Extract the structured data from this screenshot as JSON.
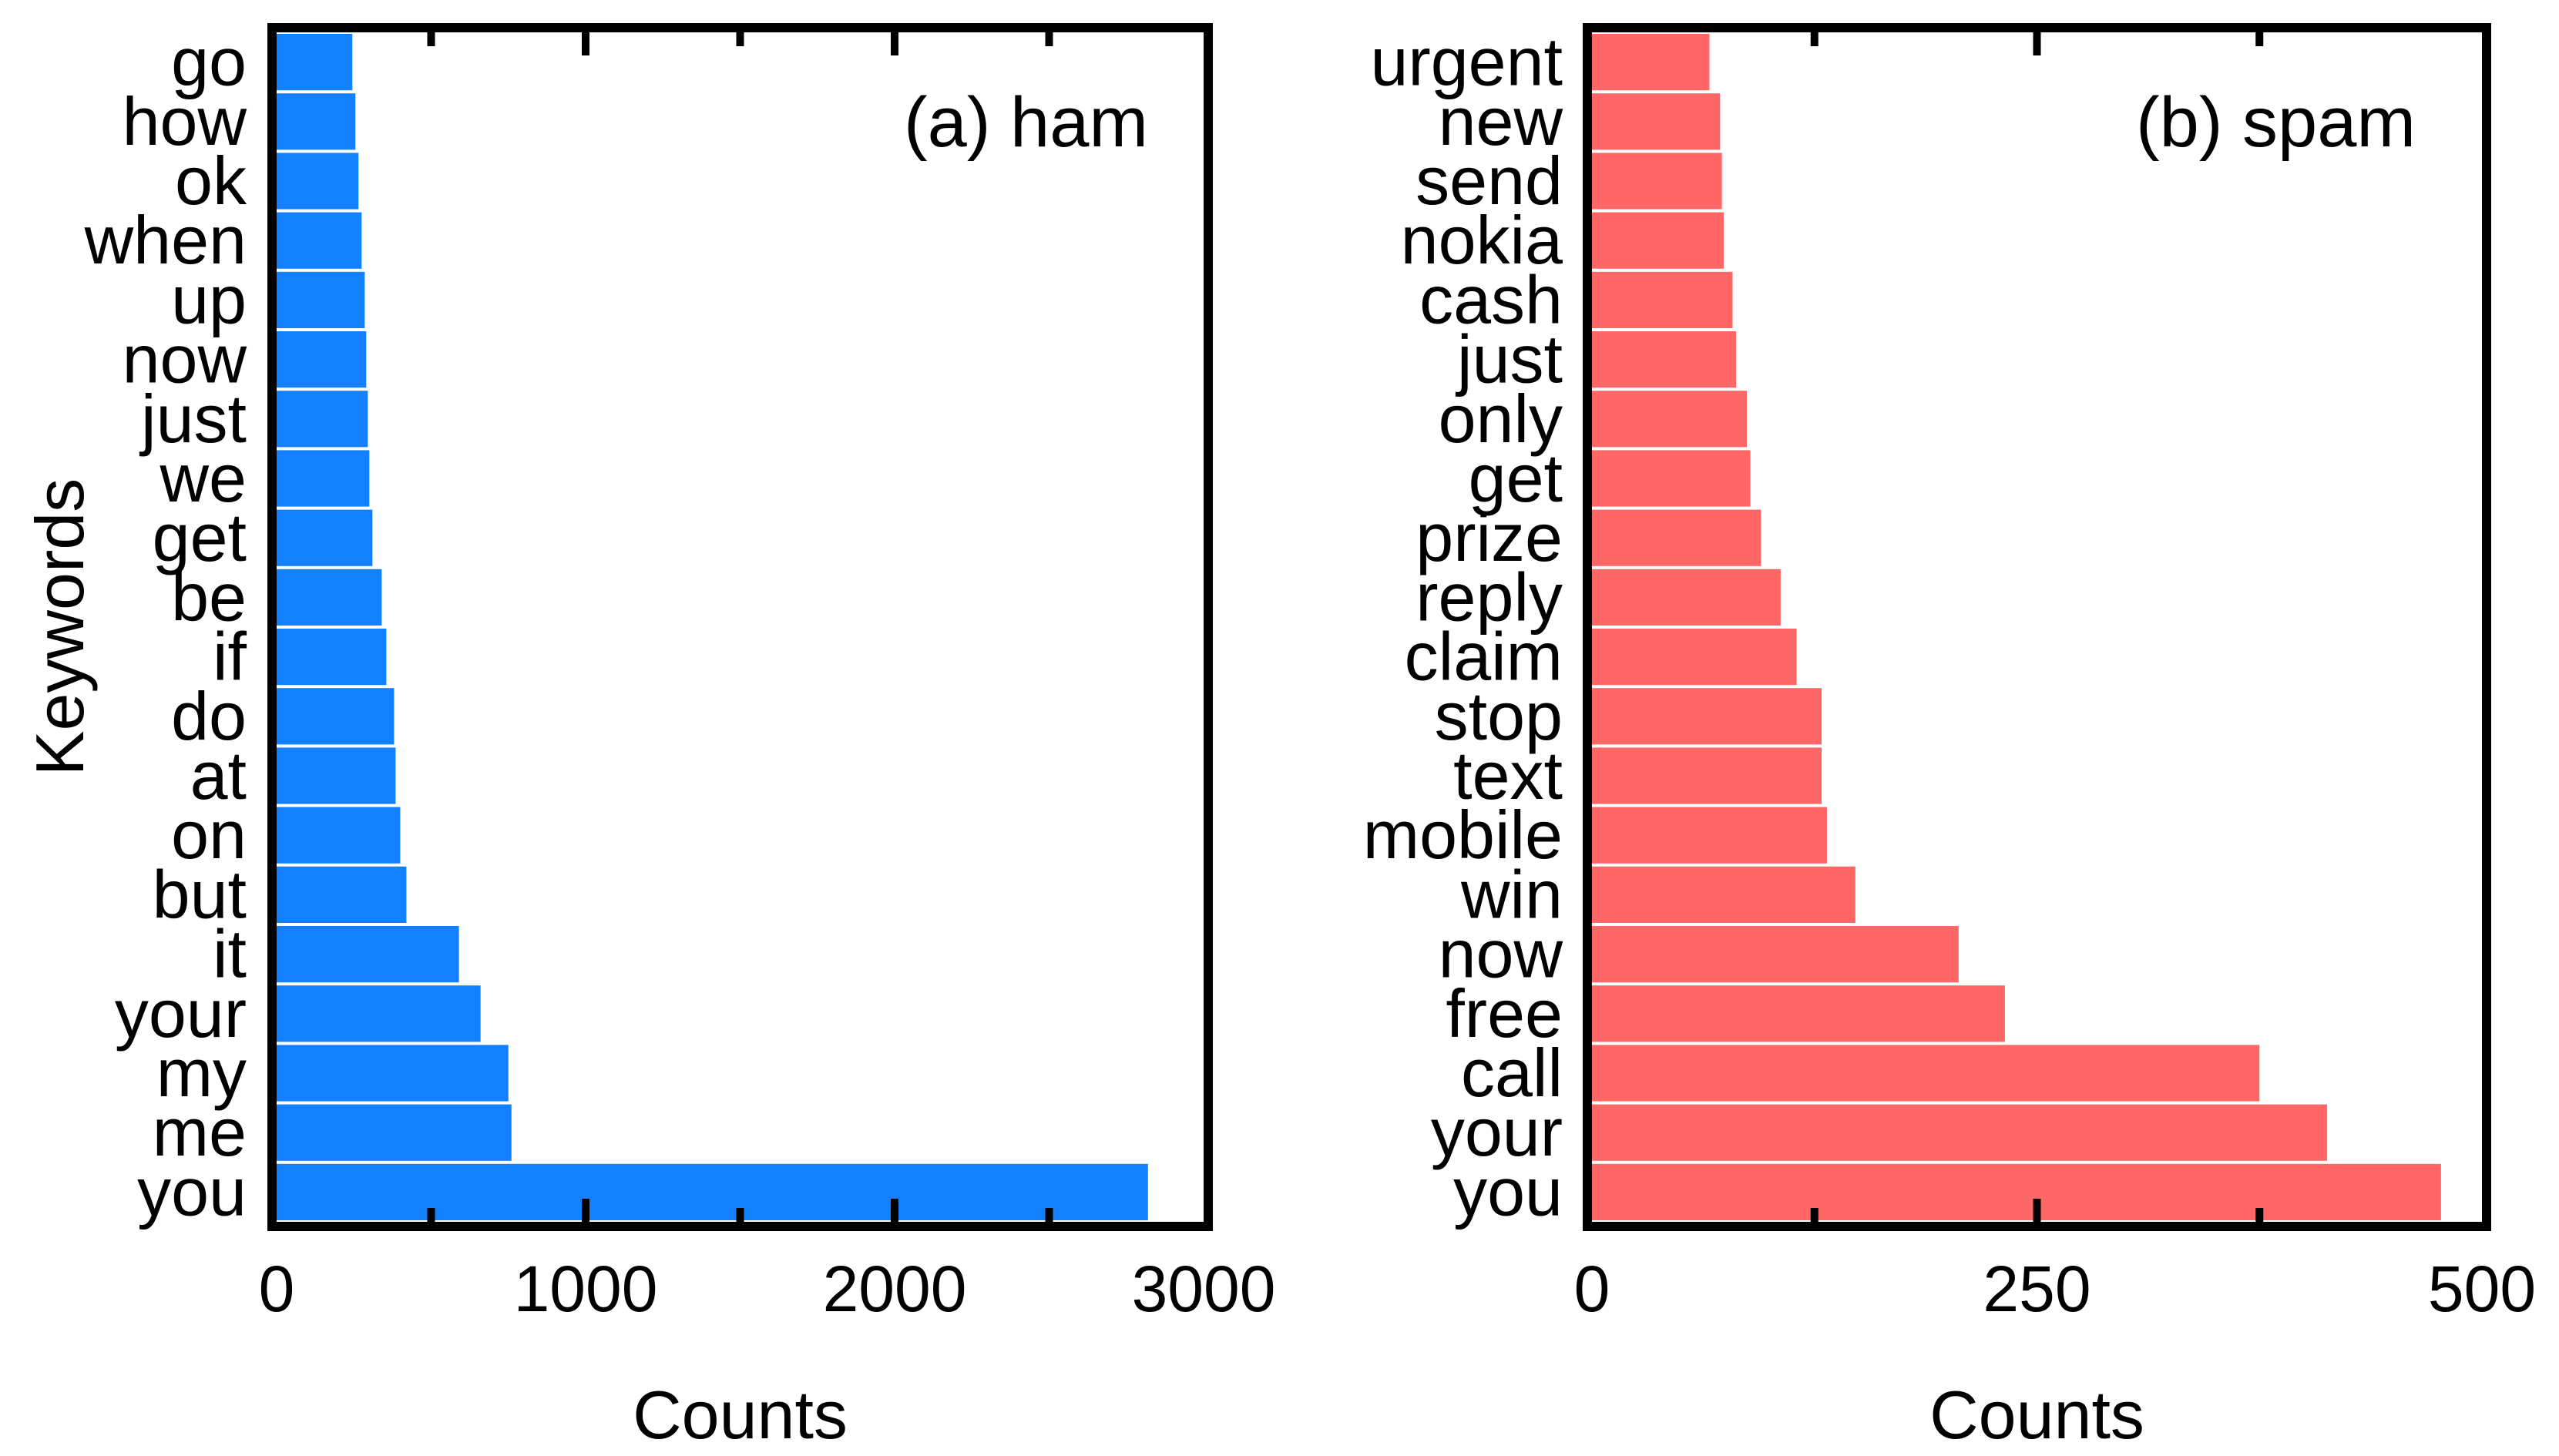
{
  "chart_data": [
    {
      "type": "bar",
      "orientation": "horizontal",
      "panel_label": "(a) ham",
      "xlabel": "Counts",
      "ylabel": "Keywords",
      "xlim": [
        0,
        3000
      ],
      "xticks": [
        0,
        1000,
        2000,
        3000
      ],
      "color": "#1380FF",
      "categories": [
        "you",
        "me",
        "my",
        "your",
        "it",
        "but",
        "on",
        "at",
        "do",
        "if",
        "be",
        "get",
        "we",
        "just",
        "now",
        "up",
        "when",
        "ok",
        "how",
        "go"
      ],
      "values": [
        2820,
        760,
        750,
        660,
        590,
        420,
        400,
        385,
        380,
        355,
        340,
        310,
        300,
        295,
        290,
        285,
        275,
        265,
        255,
        245
      ]
    },
    {
      "type": "bar",
      "orientation": "horizontal",
      "panel_label": "(b) spam",
      "xlabel": "Counts",
      "ylabel": "",
      "xlim": [
        0,
        500
      ],
      "xticks": [
        0,
        250,
        500
      ],
      "color": "#FF6666",
      "categories": [
        "you",
        "your",
        "call",
        "free",
        "now",
        "win",
        "mobile",
        "text",
        "stop",
        "claim",
        "reply",
        "prize",
        "get",
        "only",
        "just",
        "cash",
        "nokia",
        "send",
        "new",
        "urgent"
      ],
      "values": [
        477,
        413,
        375,
        232,
        206,
        148,
        132,
        129,
        129,
        115,
        106,
        95,
        89,
        87,
        81,
        79,
        74,
        73,
        72,
        66
      ]
    }
  ]
}
